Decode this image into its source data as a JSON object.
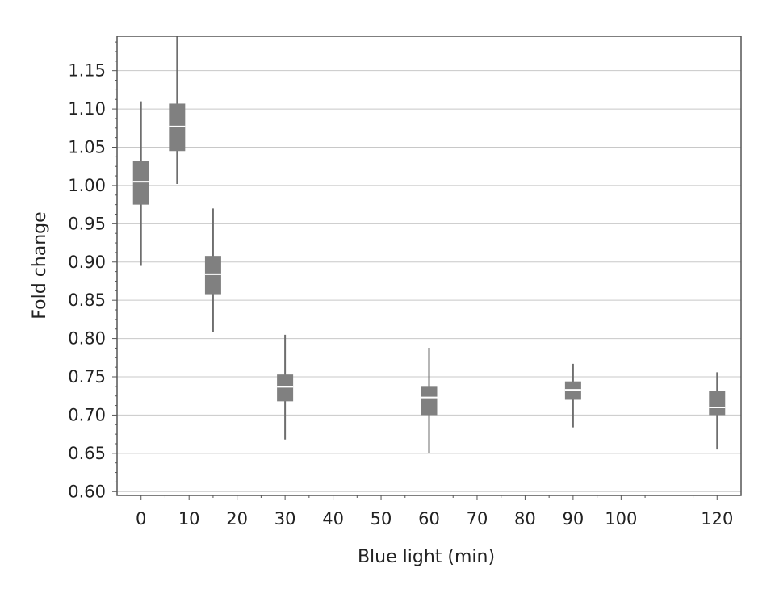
{
  "chart_data": {
    "type": "box",
    "title": "",
    "xlabel": "Blue light (min)",
    "ylabel": "Fold change",
    "xlim": [
      -5,
      125
    ],
    "ylim": [
      0.595,
      1.195
    ],
    "x_ticks": [
      0,
      10,
      20,
      30,
      40,
      50,
      60,
      70,
      80,
      90,
      100,
      120
    ],
    "y_ticks": [
      0.6,
      0.65,
      0.7,
      0.75,
      0.8,
      0.85,
      0.9,
      0.95,
      1.0,
      1.05,
      1.1,
      1.15
    ],
    "y_tick_labels": [
      "0.60",
      "0.65",
      "0.70",
      "0.75",
      "0.80",
      "0.85",
      "0.90",
      "0.95",
      "1.00",
      "1.05",
      "1.10",
      "1.15"
    ],
    "grid": "horizontal",
    "colors": {
      "box": "#808080",
      "whisker": "#6e6e6e",
      "median": "#ffffff",
      "grid": "#c8c8c8",
      "axis": "#555555"
    },
    "boxes": [
      {
        "x": 0,
        "whisker_low": 0.895,
        "q1": 0.975,
        "median": 1.005,
        "q3": 1.032,
        "whisker_high": 1.11
      },
      {
        "x": 7.5,
        "whisker_low": 1.002,
        "q1": 1.045,
        "median": 1.077,
        "q3": 1.107,
        "whisker_high": 1.195
      },
      {
        "x": 15,
        "whisker_low": 0.808,
        "q1": 0.858,
        "median": 0.884,
        "q3": 0.908,
        "whisker_high": 0.97
      },
      {
        "x": 30,
        "whisker_low": 0.668,
        "q1": 0.718,
        "median": 0.737,
        "q3": 0.753,
        "whisker_high": 0.805
      },
      {
        "x": 60,
        "whisker_low": 0.65,
        "q1": 0.7,
        "median": 0.723,
        "q3": 0.737,
        "whisker_high": 0.788
      },
      {
        "x": 90,
        "whisker_low": 0.684,
        "q1": 0.72,
        "median": 0.733,
        "q3": 0.744,
        "whisker_high": 0.767
      },
      {
        "x": 120,
        "whisker_low": 0.655,
        "q1": 0.7,
        "median": 0.71,
        "q3": 0.732,
        "whisker_high": 0.756
      }
    ]
  }
}
